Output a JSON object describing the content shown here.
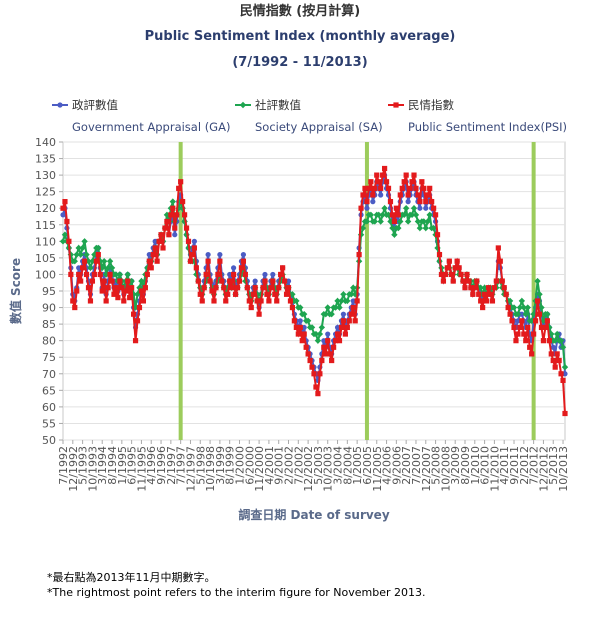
{
  "chart_data": {
    "type": "line",
    "title": "民情指數 (按月計算)",
    "subtitle": "Public Sentiment Index (monthly average)",
    "period": "(7/1992 - 11/2013)",
    "y_label": "數值 Score",
    "x_label": "調查日期 Date of survey",
    "notes": [
      "*最右點為2013年11月中期數字。",
      "*The rightmost point refers to the interim figure for November 2013."
    ],
    "ylim": [
      50,
      140
    ],
    "yticks": [
      50,
      55,
      60,
      65,
      70,
      75,
      80,
      85,
      90,
      95,
      100,
      105,
      110,
      115,
      120,
      125,
      130,
      135,
      140
    ],
    "grid": true,
    "reference_lines": {
      "color": "#9ccc5c",
      "at": [
        60,
        155,
        240
      ]
    },
    "categories": [
      "7/1992",
      null,
      null,
      null,
      null,
      "12/1992",
      null,
      null,
      null,
      null,
      "5/1993",
      null,
      null,
      null,
      null,
      "10/1993",
      null,
      null,
      null,
      null,
      "3/1994",
      null,
      null,
      null,
      null,
      "8/1994",
      null,
      null,
      null,
      null,
      "1/1995",
      null,
      null,
      null,
      null,
      "6/1995",
      null,
      null,
      null,
      null,
      "11/1995",
      null,
      null,
      null,
      null,
      "4/1996",
      null,
      null,
      null,
      null,
      "9/1996",
      null,
      null,
      null,
      null,
      "2/1997",
      null,
      null,
      null,
      null,
      "7/1997",
      null,
      null,
      null,
      null,
      "12/1997",
      null,
      null,
      null,
      null,
      "5/1998",
      null,
      null,
      null,
      null,
      "10/1998",
      null,
      null,
      null,
      null,
      "3/1999",
      null,
      null,
      null,
      null,
      "8/1999",
      null,
      null,
      null,
      null,
      "1/2000",
      null,
      null,
      null,
      null,
      "6/2000",
      null,
      null,
      null,
      null,
      "11/2000",
      null,
      null,
      null,
      null,
      "4/2001",
      null,
      null,
      null,
      null,
      "9/2001",
      null,
      null,
      null,
      null,
      "2/2002",
      null,
      null,
      null,
      null,
      "7/2002",
      null,
      null,
      null,
      null,
      "12/2002",
      null,
      null,
      null,
      null,
      "5/2003",
      null,
      null,
      null,
      null,
      "10/2003",
      null,
      null,
      null,
      null,
      "3/2004",
      null,
      null,
      null,
      null,
      "8/2004",
      null,
      null,
      null,
      null,
      "1/2005",
      null,
      null,
      null,
      null,
      "6/2005",
      null,
      null,
      null,
      null,
      "11/2005",
      null,
      null,
      null,
      null,
      "4/2006",
      null,
      null,
      null,
      null,
      "9/2006",
      null,
      null,
      null,
      null,
      "2/2007",
      null,
      null,
      null,
      null,
      "7/2007",
      null,
      null,
      null,
      null,
      "12/2007",
      null,
      null,
      null,
      null,
      "5/2008",
      null,
      null,
      null,
      null,
      "10/2008",
      null,
      null,
      null,
      null,
      "3/2009",
      null,
      null,
      null,
      null,
      "8/2009",
      null,
      null,
      null,
      null,
      "1/2010",
      null,
      null,
      null,
      null,
      "6/2010",
      null,
      null,
      null,
      null,
      "11/2010",
      null,
      null,
      null,
      null,
      "4/2011",
      null,
      null,
      null,
      null,
      "9/2011",
      null,
      null,
      null,
      null,
      "2/2012",
      null,
      null,
      null,
      null,
      "7/2012",
      null,
      null,
      null,
      null,
      "12/2012",
      null,
      null,
      null,
      null,
      "5/2013",
      null,
      null,
      null,
      null,
      "10/2013",
      null
    ],
    "series": [
      {
        "name": "政評數值",
        "label_en": "Government Appraisal (GA)",
        "color": "#4b5cc4",
        "marker": "circle",
        "values": [
          118,
          120,
          114,
          108,
          102,
          94,
          92,
          96,
          102,
          100,
          104,
          106,
          102,
          98,
          94,
          100,
          102,
          106,
          108,
          102,
          96,
          100,
          94,
          98,
          102,
          100,
          96,
          98,
          95,
          100,
          98,
          94,
          96,
          100,
          95,
          98,
          90,
          84,
          88,
          92,
          96,
          94,
          98,
          102,
          106,
          104,
          108,
          110,
          106,
          110,
          112,
          110,
          114,
          116,
          112,
          116,
          118,
          112,
          116,
          122,
          124,
          120,
          116,
          112,
          108,
          106,
          108,
          110,
          104,
          100,
          96,
          94,
          98,
          102,
          106,
          100,
          97,
          94,
          98,
          102,
          106,
          100,
          98,
          94,
          96,
          100,
          98,
          102,
          96,
          98,
          100,
          104,
          106,
          102,
          98,
          94,
          92,
          96,
          98,
          94,
          90,
          94,
          98,
          100,
          96,
          94,
          98,
          100,
          96,
          94,
          98,
          100,
          102,
          98,
          96,
          98,
          94,
          92,
          88,
          86,
          84,
          86,
          82,
          84,
          80,
          78,
          76,
          74,
          72,
          70,
          68,
          72,
          76,
          80,
          78,
          82,
          78,
          76,
          80,
          82,
          84,
          82,
          86,
          88,
          84,
          86,
          88,
          90,
          92,
          88,
          94,
          108,
          118,
          122,
          124,
          120,
          124,
          126,
          122,
          124,
          128,
          126,
          124,
          128,
          130,
          126,
          124,
          120,
          116,
          114,
          118,
          116,
          122,
          124,
          126,
          128,
          122,
          124,
          126,
          128,
          124,
          122,
          120,
          126,
          124,
          120,
          122,
          124,
          120,
          118,
          116,
          110,
          104,
          100,
          98,
          100,
          102,
          104,
          100,
          98,
          102,
          104,
          102,
          100,
          98,
          96,
          100,
          98,
          96,
          94,
          96,
          98,
          96,
          94,
          92,
          94,
          92,
          96,
          94,
          92,
          96,
          98,
          104,
          102,
          98,
          96,
          94,
          92,
          90,
          88,
          86,
          84,
          86,
          88,
          88,
          86,
          84,
          88,
          82,
          80,
          86,
          90,
          94,
          92,
          88,
          84,
          86,
          88,
          84,
          80,
          78,
          76,
          80,
          82,
          78,
          80,
          70
        ]
      },
      {
        "name": "社評數值",
        "label_en": "Society Appraisal (SA)",
        "color": "#1ea550",
        "marker": "diamond",
        "values": [
          110,
          112,
          110,
          108,
          106,
          104,
          104,
          106,
          108,
          106,
          108,
          110,
          106,
          104,
          102,
          104,
          106,
          108,
          108,
          104,
          102,
          104,
          100,
          102,
          104,
          102,
          100,
          100,
          98,
          100,
          98,
          96,
          98,
          100,
          96,
          98,
          94,
          90,
          94,
          96,
          98,
          96,
          100,
          102,
          104,
          104,
          106,
          108,
          106,
          110,
          112,
          110,
          114,
          118,
          116,
          120,
          122,
          116,
          118,
          120,
          122,
          120,
          116,
          112,
          108,
          104,
          104,
          104,
          100,
          98,
          96,
          94,
          96,
          98,
          100,
          98,
          96,
          94,
          96,
          98,
          100,
          98,
          96,
          94,
          96,
          98,
          96,
          98,
          94,
          96,
          98,
          100,
          102,
          98,
          96,
          94,
          92,
          94,
          96,
          94,
          92,
          94,
          96,
          98,
          96,
          94,
          96,
          98,
          96,
          94,
          96,
          98,
          100,
          98,
          96,
          96,
          94,
          94,
          92,
          92,
          90,
          90,
          88,
          88,
          86,
          86,
          84,
          84,
          82,
          82,
          80,
          82,
          84,
          88,
          88,
          90,
          88,
          88,
          90,
          90,
          92,
          90,
          92,
          94,
          92,
          92,
          94,
          94,
          96,
          94,
          96,
          104,
          112,
          114,
          116,
          116,
          118,
          118,
          116,
          116,
          118,
          118,
          116,
          118,
          120,
          118,
          118,
          116,
          114,
          112,
          114,
          114,
          116,
          118,
          118,
          120,
          116,
          118,
          118,
          120,
          118,
          116,
          114,
          116,
          116,
          114,
          116,
          118,
          114,
          114,
          112,
          108,
          104,
          102,
          100,
          100,
          102,
          102,
          100,
          100,
          102,
          102,
          100,
          100,
          98,
          98,
          100,
          98,
          98,
          96,
          98,
          98,
          96,
          96,
          94,
          96,
          94,
          96,
          96,
          94,
          96,
          96,
          98,
          98,
          96,
          94,
          94,
          92,
          92,
          90,
          90,
          88,
          88,
          90,
          92,
          90,
          88,
          90,
          86,
          86,
          88,
          92,
          98,
          94,
          90,
          86,
          88,
          88,
          84,
          82,
          80,
          80,
          82,
          80,
          80,
          78,
          72
        ]
      },
      {
        "name": "民情指數",
        "label_en": "Public Sentiment Index(PSI)",
        "color": "#e31a1c",
        "marker": "square",
        "values": [
          120,
          122,
          116,
          110,
          100,
          92,
          90,
          95,
          100,
          98,
          102,
          104,
          100,
          96,
          92,
          98,
          100,
          104,
          106,
          100,
          95,
          98,
          92,
          96,
          100,
          98,
          94,
          96,
          93,
          98,
          96,
          92,
          95,
          98,
          93,
          96,
          88,
          80,
          86,
          90,
          95,
          92,
          96,
          100,
          104,
          102,
          106,
          108,
          104,
          110,
          112,
          108,
          114,
          116,
          112,
          118,
          120,
          114,
          118,
          126,
          128,
          122,
          118,
          114,
          110,
          104,
          106,
          108,
          102,
          98,
          94,
          92,
          96,
          100,
          104,
          98,
          95,
          92,
          96,
          100,
          104,
          98,
          96,
          92,
          94,
          98,
          96,
          100,
          94,
          96,
          98,
          102,
          104,
          100,
          96,
          92,
          90,
          94,
          96,
          92,
          88,
          92,
          96,
          98,
          94,
          92,
          96,
          98,
          94,
          92,
          96,
          100,
          102,
          98,
          94,
          96,
          92,
          90,
          86,
          84,
          82,
          84,
          80,
          82,
          78,
          76,
          74,
          72,
          70,
          66,
          64,
          70,
          74,
          78,
          76,
          80,
          76,
          74,
          78,
          80,
          82,
          80,
          84,
          86,
          82,
          84,
          86,
          88,
          90,
          86,
          92,
          106,
          120,
          124,
          126,
          122,
          126,
          128,
          124,
          126,
          130,
          128,
          126,
          130,
          132,
          128,
          126,
          122,
          118,
          116,
          120,
          118,
          124,
          126,
          128,
          130,
          124,
          126,
          128,
          130,
          126,
          124,
          122,
          128,
          126,
          122,
          124,
          126,
          122,
          120,
          118,
          112,
          106,
          100,
          98,
          100,
          102,
          104,
          100,
          98,
          102,
          104,
          102,
          100,
          98,
          96,
          100,
          98,
          96,
          94,
          96,
          98,
          94,
          92,
          90,
          94,
          92,
          96,
          94,
          92,
          96,
          98,
          108,
          104,
          98,
          96,
          94,
          90,
          88,
          86,
          84,
          80,
          82,
          84,
          86,
          82,
          80,
          84,
          78,
          76,
          82,
          86,
          92,
          88,
          84,
          80,
          84,
          86,
          80,
          76,
          74,
          72,
          76,
          74,
          70,
          68,
          58
        ]
      }
    ]
  }
}
